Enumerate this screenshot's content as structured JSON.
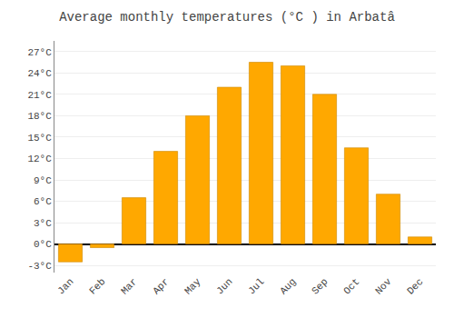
{
  "chart_data": {
    "type": "bar",
    "title": "Average monthly temperatures (°C ) in Arbatâ",
    "categories": [
      "Jan",
      "Feb",
      "Mar",
      "Apr",
      "May",
      "Jun",
      "Jul",
      "Aug",
      "Sep",
      "Oct",
      "Nov",
      "Dec"
    ],
    "values": [
      -2.5,
      -0.5,
      6.5,
      13.0,
      18.0,
      22.0,
      25.5,
      25.0,
      21.0,
      13.5,
      7.0,
      1.0
    ],
    "color": "#FFA800",
    "ylim": [
      -4.0,
      28.5
    ],
    "yticks": [
      {
        "value": -3,
        "label": "-3°C"
      },
      {
        "value": 0,
        "label": "0°C"
      },
      {
        "value": 3,
        "label": "3°C"
      },
      {
        "value": 6,
        "label": "6°C"
      },
      {
        "value": 9,
        "label": "9°C"
      },
      {
        "value": 12,
        "label": "12°C"
      },
      {
        "value": 15,
        "label": "15°C"
      },
      {
        "value": 18,
        "label": "18°C"
      },
      {
        "value": 21,
        "label": "21°C"
      },
      {
        "value": 24,
        "label": "24°C"
      },
      {
        "value": 27,
        "label": "27°C"
      }
    ],
    "grid": true
  }
}
